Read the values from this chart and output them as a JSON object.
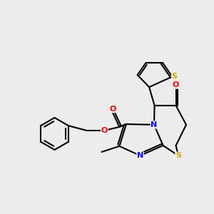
{
  "background_color": "#ececec",
  "atom_colors": {
    "C": "#000000",
    "N": "#0000ee",
    "O": "#ee0000",
    "S": "#ccaa00"
  },
  "bond_color": "#000000",
  "bond_width": 1.5,
  "figsize": [
    3.0,
    3.0
  ],
  "dpi": 100,
  "xlim": [
    0,
    10
  ],
  "ylim": [
    0,
    10
  ]
}
